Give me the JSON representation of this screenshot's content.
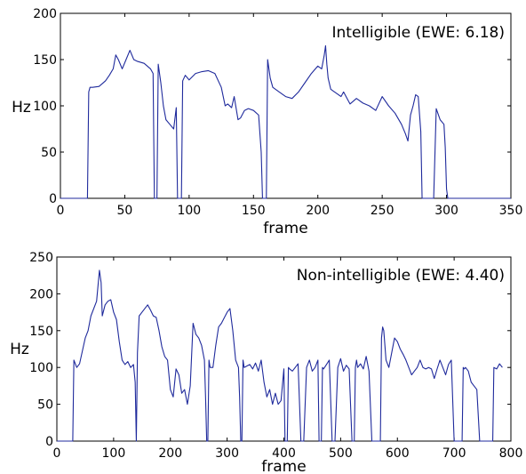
{
  "chart_data": [
    {
      "type": "line",
      "title": "Intelligible (EWE: 6.18)",
      "xlabel": "frame",
      "ylabel": "Hz",
      "xlim": [
        0,
        350
      ],
      "ylim": [
        0,
        200
      ],
      "xticks": [
        0,
        50,
        100,
        150,
        200,
        250,
        300,
        350
      ],
      "yticks": [
        0,
        50,
        100,
        150,
        200
      ],
      "grid": false,
      "color": "#1f2a9c",
      "series": [
        {
          "x": [
            0,
            21,
            22,
            23,
            25,
            30,
            35,
            38,
            41,
            43,
            45,
            48,
            51,
            54,
            57,
            60,
            65,
            70,
            72,
            73,
            74,
            75,
            76,
            78,
            80,
            82,
            85,
            88,
            90,
            91,
            92,
            93,
            94,
            95,
            97,
            100,
            105,
            110,
            115,
            120,
            125,
            128,
            130,
            133,
            135,
            138,
            140,
            143,
            146,
            150,
            154,
            156,
            157,
            158,
            159,
            160,
            161,
            163,
            165,
            170,
            175,
            180,
            185,
            190,
            195,
            200,
            203,
            205,
            206,
            207,
            208,
            210,
            213,
            215,
            218,
            220,
            225,
            230,
            235,
            240,
            245,
            250,
            255,
            260,
            265,
            268,
            270,
            272,
            274,
            276,
            278,
            280,
            281,
            282,
            283,
            284,
            285,
            286,
            287,
            288,
            290,
            292,
            295,
            298,
            299,
            300,
            301,
            302,
            305,
            350
          ],
          "y": [
            0,
            0,
            115,
            120,
            120,
            121,
            127,
            133,
            140,
            155,
            150,
            140,
            150,
            160,
            150,
            148,
            146,
            140,
            135,
            0,
            0,
            0,
            145,
            125,
            100,
            85,
            80,
            75,
            98,
            0,
            0,
            0,
            0,
            127,
            133,
            128,
            135,
            137,
            138,
            135,
            120,
            100,
            102,
            98,
            110,
            85,
            87,
            95,
            97,
            95,
            90,
            50,
            0,
            0,
            0,
            0,
            150,
            130,
            120,
            115,
            110,
            108,
            115,
            125,
            135,
            143,
            140,
            155,
            165,
            145,
            130,
            118,
            115,
            113,
            110,
            115,
            102,
            108,
            103,
            100,
            95,
            110,
            100,
            92,
            80,
            70,
            62,
            90,
            100,
            112,
            110,
            72,
            0,
            0,
            0,
            0,
            0,
            0,
            0,
            0,
            0,
            97,
            85,
            80,
            55,
            10,
            0,
            0,
            0,
            0
          ]
        }
      ]
    },
    {
      "type": "line",
      "title": "Non-intelligible (EWE: 4.40)",
      "xlabel": "frame",
      "ylabel": "Hz",
      "xlim": [
        0,
        800
      ],
      "ylim": [
        0,
        250
      ],
      "xticks": [
        0,
        100,
        200,
        300,
        400,
        500,
        600,
        700,
        800
      ],
      "yticks": [
        0,
        50,
        100,
        150,
        200,
        250
      ],
      "grid": false,
      "color": "#1f2a9c",
      "series": [
        {
          "x": [
            0,
            28,
            30,
            35,
            40,
            50,
            55,
            60,
            70,
            75,
            78,
            80,
            85,
            90,
            95,
            100,
            105,
            110,
            115,
            120,
            125,
            130,
            135,
            138,
            140,
            142,
            145,
            150,
            155,
            160,
            165,
            170,
            175,
            180,
            185,
            190,
            195,
            200,
            205,
            210,
            215,
            220,
            225,
            230,
            235,
            240,
            245,
            250,
            255,
            260,
            262,
            264,
            266,
            268,
            270,
            275,
            280,
            285,
            290,
            300,
            305,
            310,
            315,
            320,
            322,
            324,
            326,
            328,
            330,
            335,
            340,
            345,
            350,
            355,
            360,
            365,
            370,
            375,
            380,
            385,
            390,
            395,
            400,
            402,
            404,
            406,
            408,
            410,
            415,
            420,
            425,
            430,
            435,
            440,
            445,
            450,
            455,
            460,
            462,
            464,
            466,
            468,
            470,
            475,
            480,
            485,
            490,
            495,
            500,
            505,
            510,
            515,
            520,
            522,
            524,
            526,
            528,
            530,
            535,
            540,
            545,
            550,
            555,
            560,
            565,
            570,
            572,
            574,
            576,
            578,
            580,
            585,
            590,
            595,
            600,
            605,
            610,
            615,
            620,
            625,
            630,
            635,
            640,
            645,
            650,
            655,
            660,
            665,
            670,
            675,
            680,
            685,
            690,
            695,
            700,
            705,
            710,
            712,
            714,
            716,
            718,
            720,
            725,
            730,
            735,
            740,
            745,
            748,
            750,
            755,
            760,
            765,
            768,
            770,
            775,
            780,
            785
          ],
          "y": [
            0,
            0,
            110,
            100,
            105,
            140,
            150,
            170,
            190,
            232,
            215,
            170,
            185,
            190,
            192,
            175,
            165,
            135,
            110,
            104,
            108,
            100,
            104,
            80,
            0,
            120,
            170,
            175,
            180,
            185,
            178,
            170,
            168,
            150,
            128,
            115,
            110,
            70,
            60,
            98,
            90,
            65,
            70,
            50,
            75,
            160,
            145,
            140,
            130,
            110,
            60,
            0,
            0,
            110,
            100,
            100,
            130,
            155,
            160,
            175,
            180,
            150,
            110,
            100,
            60,
            0,
            0,
            110,
            100,
            102,
            104,
            98,
            106,
            95,
            110,
            80,
            60,
            70,
            50,
            65,
            50,
            55,
            98,
            0,
            0,
            0,
            100,
            98,
            95,
            100,
            105,
            0,
            0,
            100,
            110,
            95,
            100,
            110,
            0,
            0,
            0,
            100,
            98,
            104,
            110,
            0,
            0,
            100,
            112,
            95,
            103,
            98,
            0,
            0,
            0,
            100,
            110,
            100,
            105,
            98,
            115,
            95,
            0,
            0,
            0,
            0,
            140,
            155,
            150,
            130,
            110,
            100,
            120,
            140,
            135,
            125,
            118,
            110,
            100,
            90,
            95,
            100,
            110,
            100,
            98,
            100,
            98,
            85,
            98,
            110,
            100,
            90,
            104,
            110,
            0,
            0,
            0,
            0,
            0,
            100,
            98,
            100,
            95,
            80,
            75,
            70,
            0,
            0,
            0,
            0,
            0,
            0,
            0,
            100,
            98,
            105,
            100
          ]
        }
      ]
    }
  ]
}
